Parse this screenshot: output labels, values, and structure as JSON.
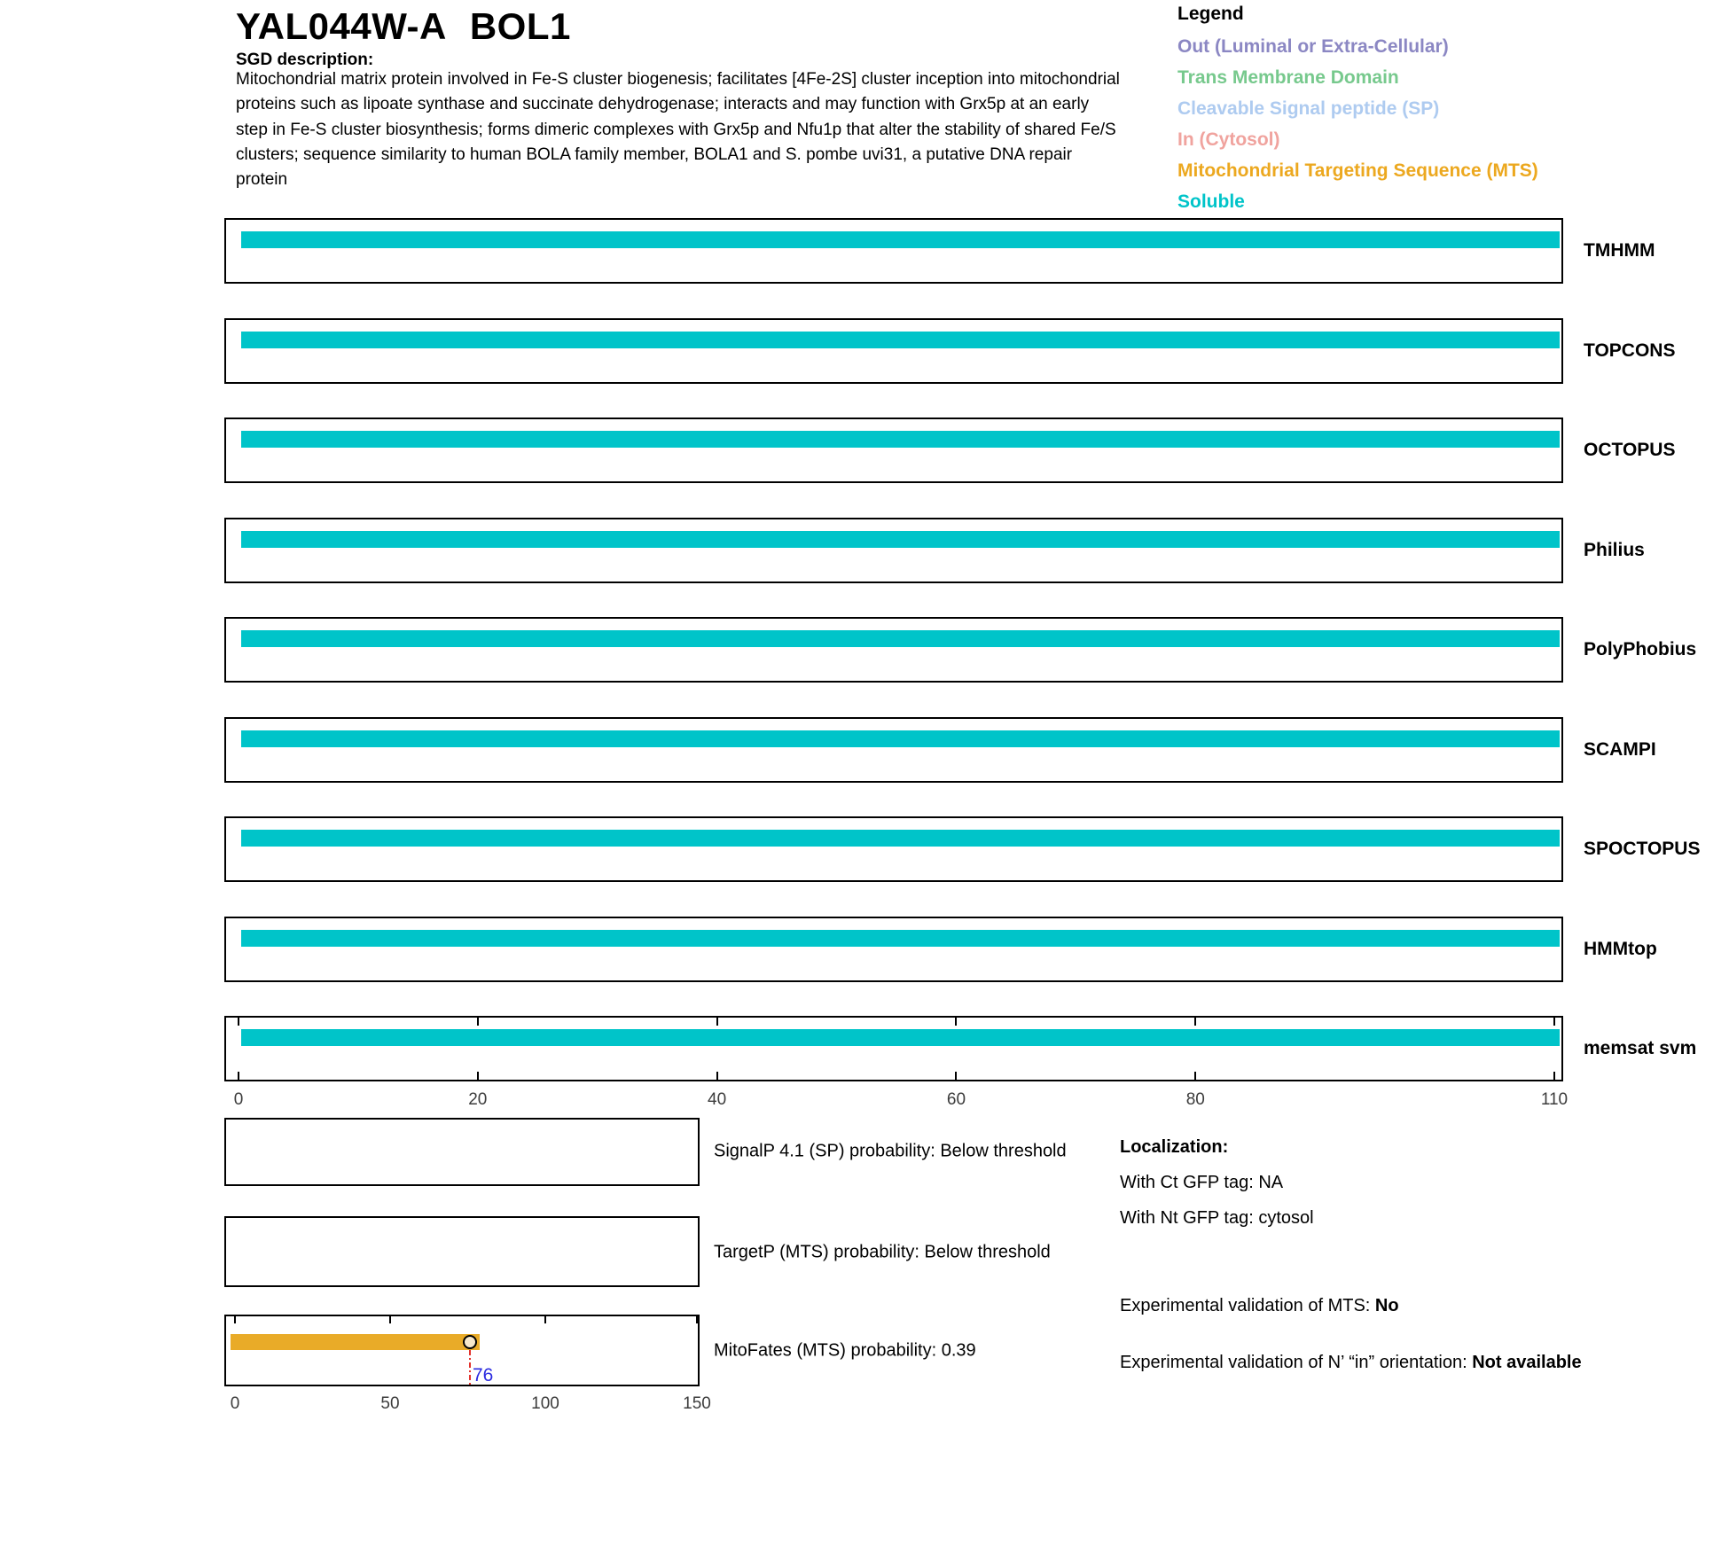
{
  "header": {
    "orf": "YAL044W-A",
    "gene": "BOL1",
    "sgd_label": "SGD description:",
    "description": "Mitochondrial matrix protein involved in Fe-S cluster biogenesis; facilitates [4Fe-2S] cluster inception into mitochondrial proteins such as lipoate synthase and succinate dehydrogenase; interacts and may function with Grx5p at an early step in Fe-S cluster biosynthesis; forms dimeric complexes with Grx5p and Nfu1p that alter the stability of shared Fe/S clusters; sequence similarity to human BOLA family member, BOLA1 and S. pombe uvi31, a putative DNA repair protein"
  },
  "legend": {
    "title": "Legend",
    "items": [
      {
        "label": "Out (Luminal or Extra-Cellular)",
        "color": "#8B87C3"
      },
      {
        "label": "Trans Membrane Domain",
        "color": "#77C98D"
      },
      {
        "label": "Cleavable Signal peptide (SP)",
        "color": "#AECBF0"
      },
      {
        "label": "In (Cytosol)",
        "color": "#F0A39E"
      },
      {
        "label": "Mitochondrial Targeting Sequence (MTS)",
        "color": "#ECA81F"
      },
      {
        "label": "Soluble",
        "color": "#00C4C9"
      }
    ]
  },
  "chart_data": [
    {
      "type": "bar",
      "title": "",
      "orientation": "horizontal-tracks",
      "categories": [
        "TMHMM",
        "TOPCONS",
        "OCTOPUS",
        "Philius",
        "PolyPhobius",
        "SCAMPI",
        "SPOCTOPUS",
        "HMMtop",
        "memsat svm"
      ],
      "series": [
        {
          "name": "Soluble",
          "color": "#00C4C9",
          "segments": [
            {
              "category": "TMHMM",
              "start": 1,
              "end": 110
            },
            {
              "category": "TOPCONS",
              "start": 1,
              "end": 110
            },
            {
              "category": "OCTOPUS",
              "start": 1,
              "end": 110
            },
            {
              "category": "Philius",
              "start": 1,
              "end": 110
            },
            {
              "category": "PolyPhobius",
              "start": 1,
              "end": 110
            },
            {
              "category": "SCAMPI",
              "start": 1,
              "end": 110
            },
            {
              "category": "SPOCTOPUS",
              "start": 1,
              "end": 110
            },
            {
              "category": "HMMtop",
              "start": 1,
              "end": 110
            },
            {
              "category": "memsat svm",
              "start": 1,
              "end": 110
            }
          ]
        }
      ],
      "xlim": [
        0,
        110
      ],
      "xticks": [
        0,
        20,
        40,
        60,
        80,
        110
      ],
      "xtick_labels": [
        "0",
        "20",
        "40",
        "60",
        "80",
        "110"
      ],
      "axis_shown_on_category": "memsat svm",
      "grid": false,
      "legend_position": "top-right"
    },
    {
      "type": "bar",
      "title": "",
      "orientation": "horizontal-track",
      "series": [
        {
          "name": "Mitochondrial Targeting Sequence (MTS)",
          "color": "#E9AB28",
          "segments": [
            {
              "start": 0,
              "end": 78
            }
          ]
        }
      ],
      "annotation": {
        "marker_x": 76,
        "marker_label": "76",
        "marker_label_color": "#2B2BE0",
        "marker_fill": "#F7E8CB",
        "guide_line_color": "#E3342E"
      },
      "probability": 0.39,
      "xlim": [
        0,
        150
      ],
      "xticks": [
        0,
        50,
        100,
        150
      ],
      "xtick_labels": [
        "0",
        "50",
        "100",
        "150"
      ],
      "grid": false
    }
  ],
  "probability_plots": [
    {
      "label": "SignalP 4.1 (SP) probability: Below threshold"
    },
    {
      "label": "TargetP (MTS) probability: Below threshold"
    },
    {
      "label": "MitoFates (MTS) probability: 0.39"
    }
  ],
  "localization": {
    "title": "Localization:",
    "lines": [
      "With Ct GFP tag: NA",
      "With Nt GFP tag: cytosol"
    ],
    "mts_validation_label": "Experimental validation of MTS:",
    "mts_validation_value": "No",
    "orientation_label": "Experimental validation of N’ “in” orientation:",
    "orientation_value": "Not available"
  }
}
